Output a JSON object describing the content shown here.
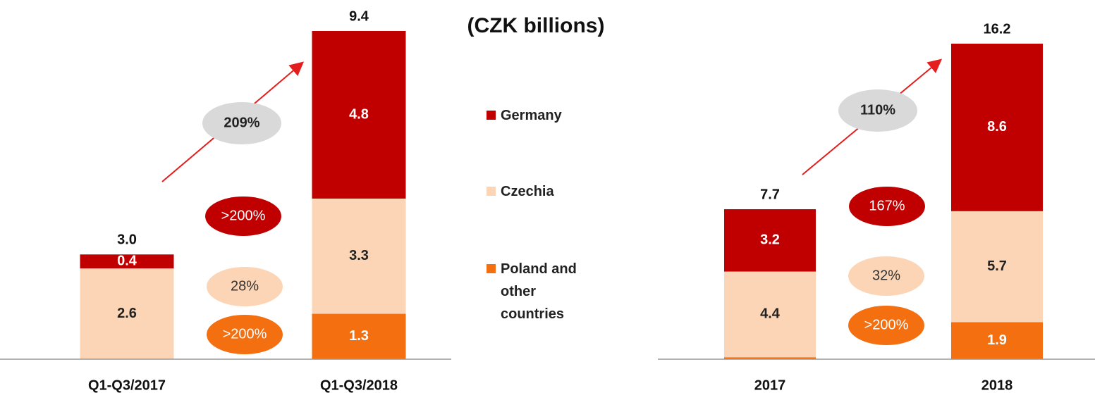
{
  "chart_data": [
    {
      "type": "stacked_bar",
      "subtitle": "(CZK billions)",
      "categories": [
        "Q1-Q3/2017",
        "Q1-Q3/2018"
      ],
      "series": [
        {
          "name": "Germany",
          "color": "#c00000",
          "values": [
            0.4,
            4.8
          ],
          "value_labels": [
            "0.4",
            "4.8"
          ]
        },
        {
          "name": "Czechia",
          "color": "#fbd5b5",
          "values": [
            2.6,
            3.3
          ],
          "value_labels": [
            "2.6",
            "3.3"
          ]
        },
        {
          "name": "Poland and other countries",
          "color": "#f36f10",
          "values": [
            0,
            1.3
          ],
          "value_labels": [
            null,
            "1.3"
          ]
        }
      ],
      "totals": [
        3.0,
        9.4
      ],
      "total_labels": [
        "3.0",
        "9.4"
      ],
      "ylim": [
        0,
        9.4
      ],
      "annotations": {
        "total_growth": "209%",
        "series_growth": [
          ">200%",
          "28%",
          ">200%"
        ]
      }
    },
    {
      "type": "stacked_bar",
      "categories": [
        "2017",
        "2018"
      ],
      "series": [
        {
          "name": "Germany",
          "color": "#c00000",
          "values": [
            3.2,
            8.6
          ],
          "value_labels": [
            "3.2",
            "8.6"
          ]
        },
        {
          "name": "Czechia",
          "color": "#fbd5b5",
          "values": [
            4.4,
            5.7
          ],
          "value_labels": [
            "4.4",
            "5.7"
          ]
        },
        {
          "name": "Poland and other countries",
          "color": "#f36f10",
          "values": [
            0.1,
            1.9
          ],
          "value_labels": [
            null,
            "1.9"
          ]
        }
      ],
      "totals": [
        7.7,
        16.2
      ],
      "total_labels": [
        "7.7",
        "16.2"
      ],
      "ylim": [
        0,
        16.2
      ],
      "annotations": {
        "total_growth": "110%",
        "series_growth": [
          "167%",
          "32%",
          ">200%"
        ]
      }
    }
  ]
}
